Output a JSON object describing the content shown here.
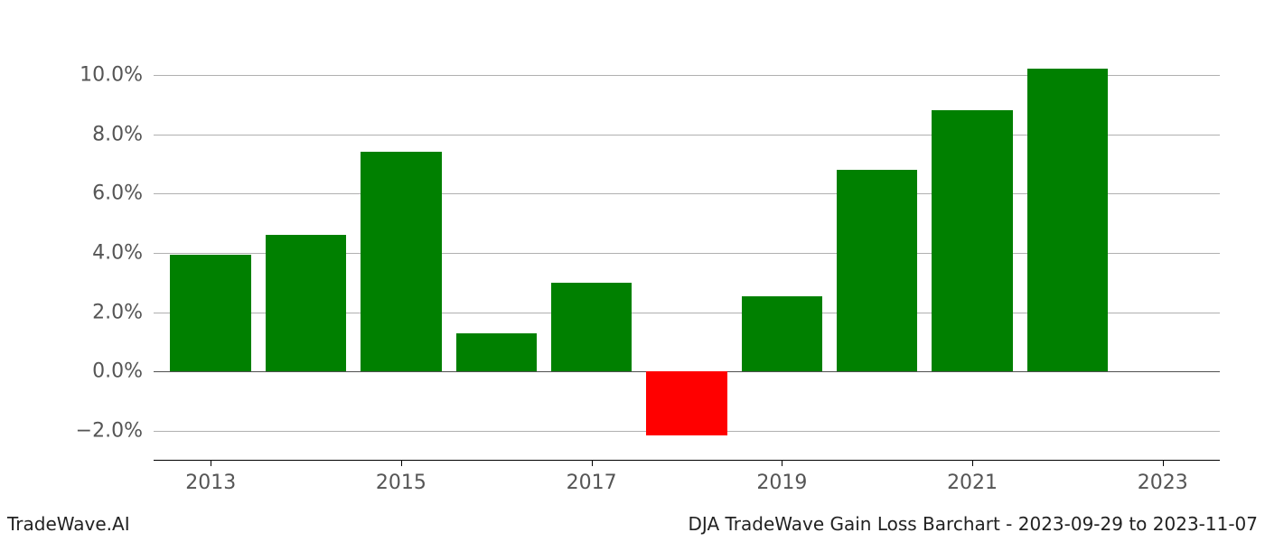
{
  "chart": {
    "type": "bar",
    "years": [
      2013,
      2014,
      2015,
      2016,
      2017,
      2018,
      2019,
      2020,
      2021,
      2022
    ],
    "values": [
      3.95,
      4.6,
      7.4,
      1.3,
      3.0,
      -2.15,
      2.55,
      6.8,
      8.8,
      10.2
    ],
    "bar_colors": [
      "#008000",
      "#008000",
      "#008000",
      "#008000",
      "#008000",
      "#ff0000",
      "#008000",
      "#008000",
      "#008000",
      "#008000"
    ],
    "y_min": -3.0,
    "y_max": 11.0,
    "y_ticks": [
      -2.0,
      0.0,
      2.0,
      4.0,
      6.0,
      8.0,
      10.0
    ],
    "y_tick_labels": [
      "−2.0%",
      "0.0%",
      "2.0%",
      "4.0%",
      "6.0%",
      "8.0%",
      "10.0%"
    ],
    "x_ticks": [
      2013,
      2015,
      2017,
      2019,
      2021,
      2023
    ],
    "x_tick_labels": [
      "2013",
      "2015",
      "2017",
      "2019",
      "2021",
      "2023"
    ],
    "x_min": 2012.4,
    "x_max": 2023.6,
    "bar_width": 0.85,
    "background_color": "#ffffff",
    "grid_color": "#b0b0b0",
    "zero_line_color": "#505050",
    "tick_font_color": "#555555",
    "tick_font_size": 22,
    "footer_font_size": 20,
    "footer_color": "#222222"
  },
  "footer": {
    "left": "TradeWave.AI",
    "right": "DJA TradeWave Gain Loss Barchart - 2023-09-29 to 2023-11-07"
  }
}
